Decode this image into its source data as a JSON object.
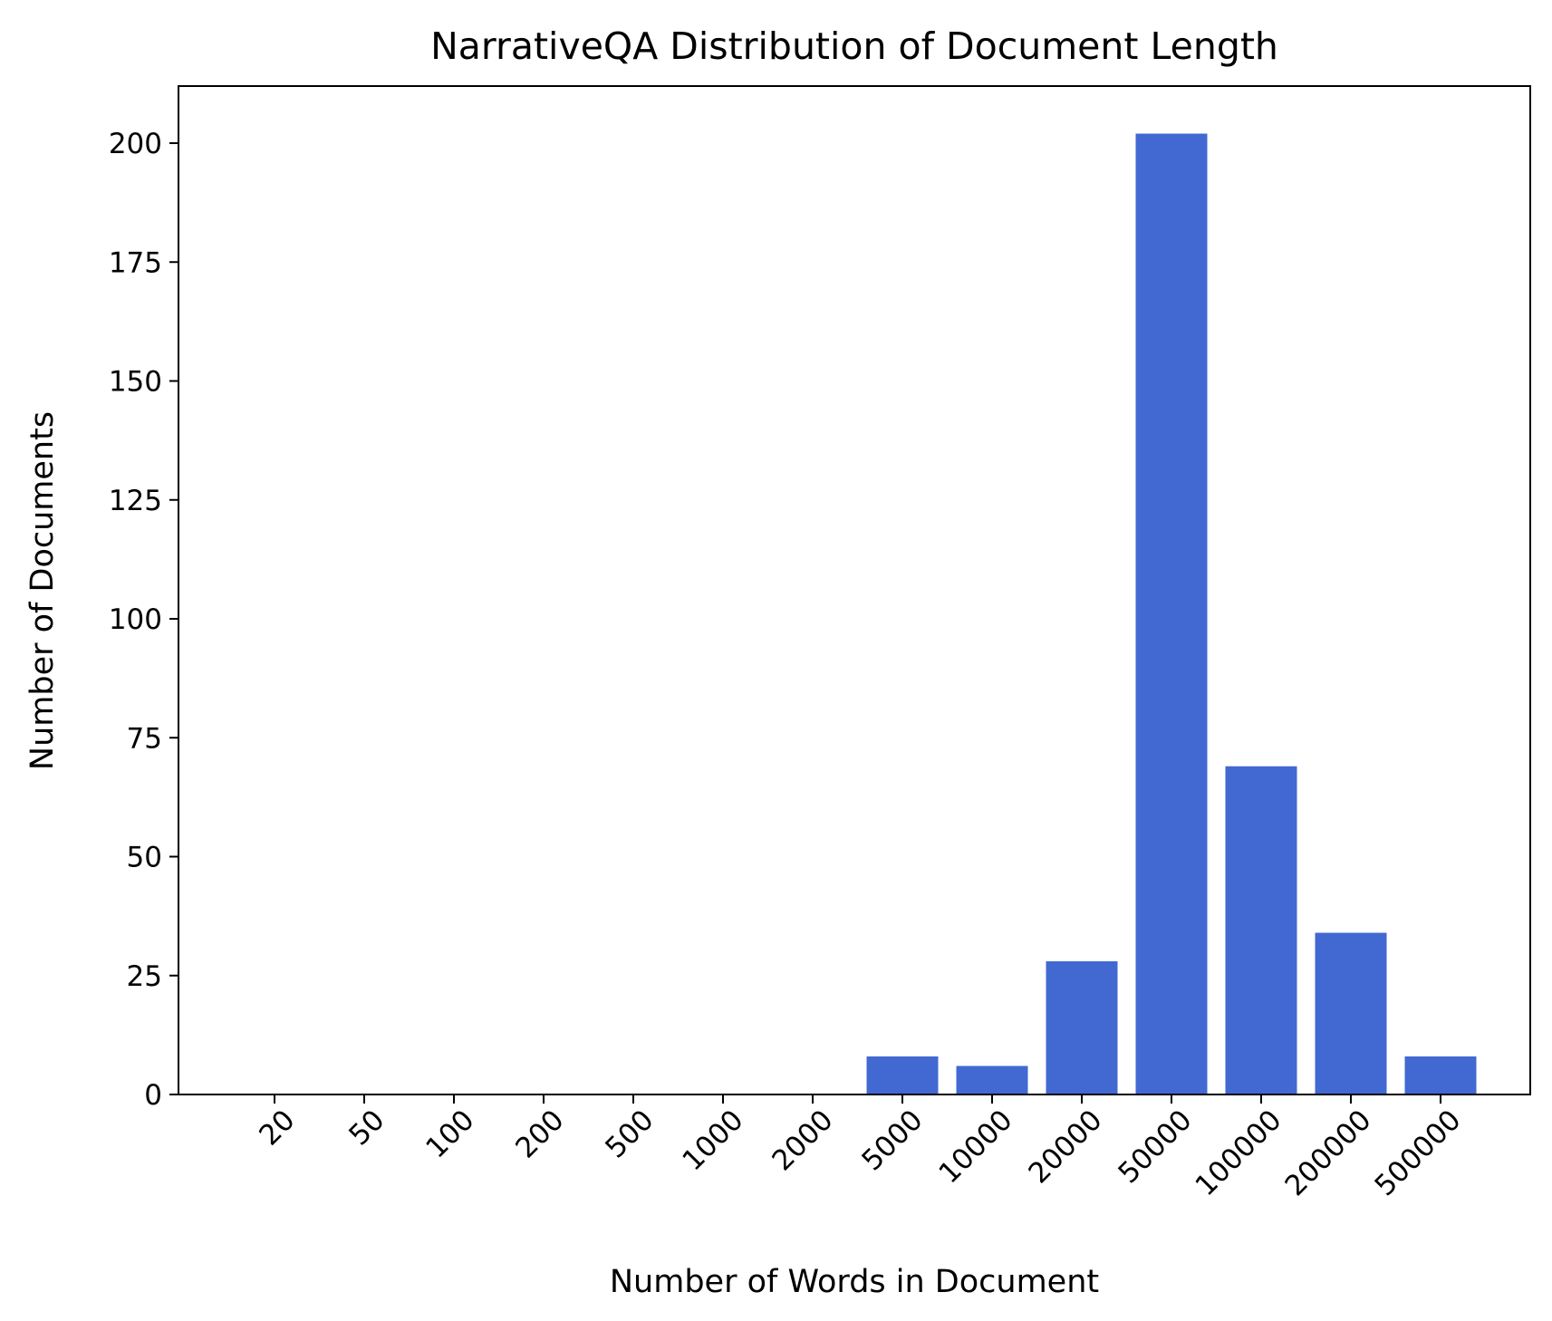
{
  "chart_data": {
    "type": "bar",
    "title": "NarrativeQA Distribution of Document Length",
    "xlabel": "Number of Words in Document",
    "ylabel": "Number of Documents",
    "categories": [
      "20",
      "50",
      "100",
      "200",
      "500",
      "1000",
      "2000",
      "5000",
      "10000",
      "20000",
      "50000",
      "100000",
      "200000",
      "500000"
    ],
    "values": [
      0,
      0,
      0,
      0,
      0,
      0,
      0,
      8,
      6,
      28,
      202,
      69,
      34,
      8
    ],
    "ylim": [
      0,
      212
    ],
    "yticks": [
      0,
      25,
      50,
      75,
      100,
      125,
      150,
      175,
      200
    ],
    "grid": false,
    "legend": "none",
    "bar_color": "#4169d1"
  }
}
